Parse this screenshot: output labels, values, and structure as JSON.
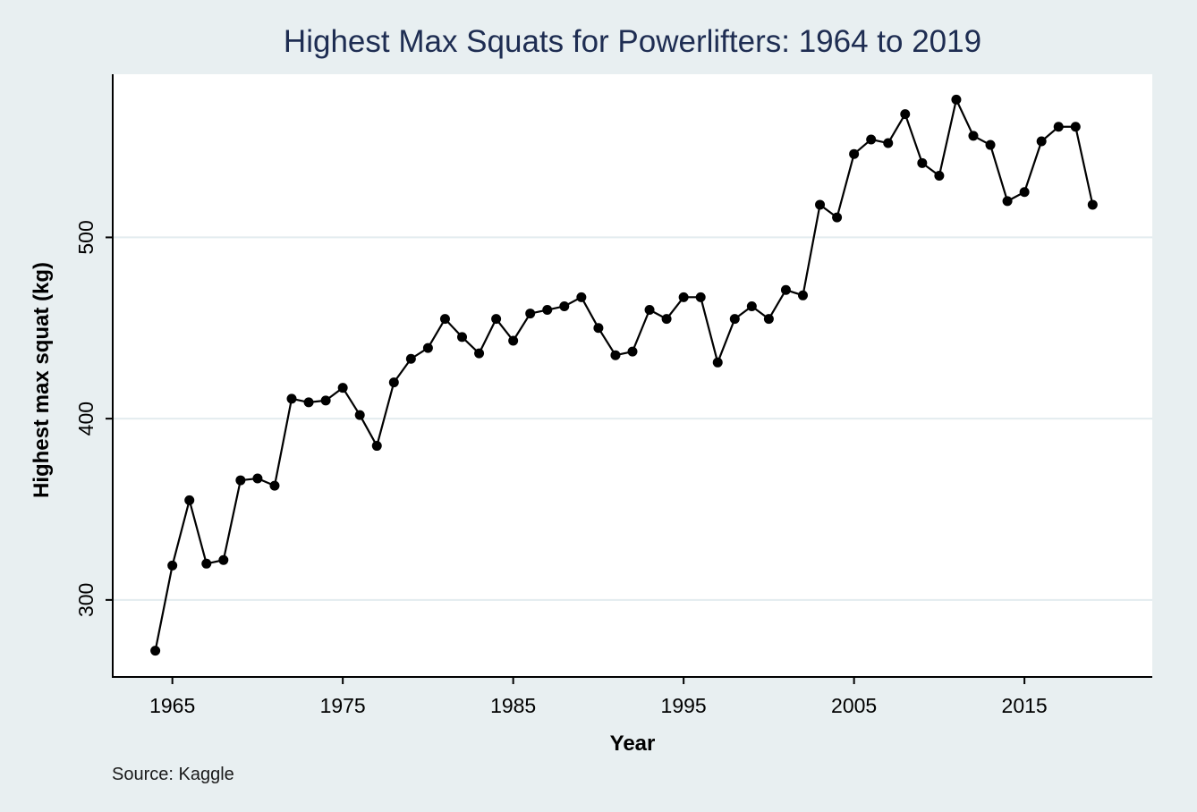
{
  "chart_data": {
    "type": "line",
    "title": "Highest Max Squats for Powerlifters: 1964 to 2019",
    "xlabel": "Year",
    "ylabel": "Highest max squat (kg)",
    "note": "Source: Kaggle",
    "xlim": [
      1961.5,
      2022.5
    ],
    "ylim": [
      257.5,
      590
    ],
    "xticks": [
      1965,
      1975,
      1985,
      1995,
      2005,
      2015
    ],
    "yticks": [
      300,
      400,
      500
    ],
    "grid": true,
    "legend": "none",
    "colors": {
      "line": "#000000",
      "marker": "#000000",
      "grid": "#e3ecef",
      "background": "#e8eff1",
      "plot_bg": "#ffffff",
      "title": "#1e2d52"
    },
    "series": [
      {
        "x": [
          1964,
          1965,
          1966,
          1967,
          1968,
          1969,
          1970,
          1971,
          1972,
          1973,
          1974,
          1975,
          1976,
          1977,
          1978,
          1979,
          1980,
          1981,
          1982,
          1983,
          1984,
          1985,
          1986,
          1987,
          1988,
          1989,
          1990,
          1991,
          1992,
          1993,
          1994,
          1995,
          1996,
          1997,
          1998,
          1999,
          2000,
          2001,
          2002,
          2003,
          2004,
          2005,
          2006,
          2007,
          2008,
          2009,
          2010,
          2011,
          2012,
          2013,
          2014,
          2015,
          2016,
          2017,
          2018,
          2019
        ],
        "y": [
          272,
          319,
          355,
          320,
          322,
          366,
          367,
          363,
          411,
          409,
          410,
          417,
          402,
          385,
          420,
          433,
          439,
          455,
          445,
          436,
          455,
          443,
          458,
          460,
          462,
          467,
          450,
          435,
          437,
          460,
          455,
          467,
          467,
          431,
          455,
          462,
          455,
          471,
          468,
          518,
          511,
          546,
          554,
          552,
          568,
          541,
          534,
          576,
          556,
          551,
          520,
          525,
          553,
          561,
          561,
          518
        ]
      }
    ]
  }
}
